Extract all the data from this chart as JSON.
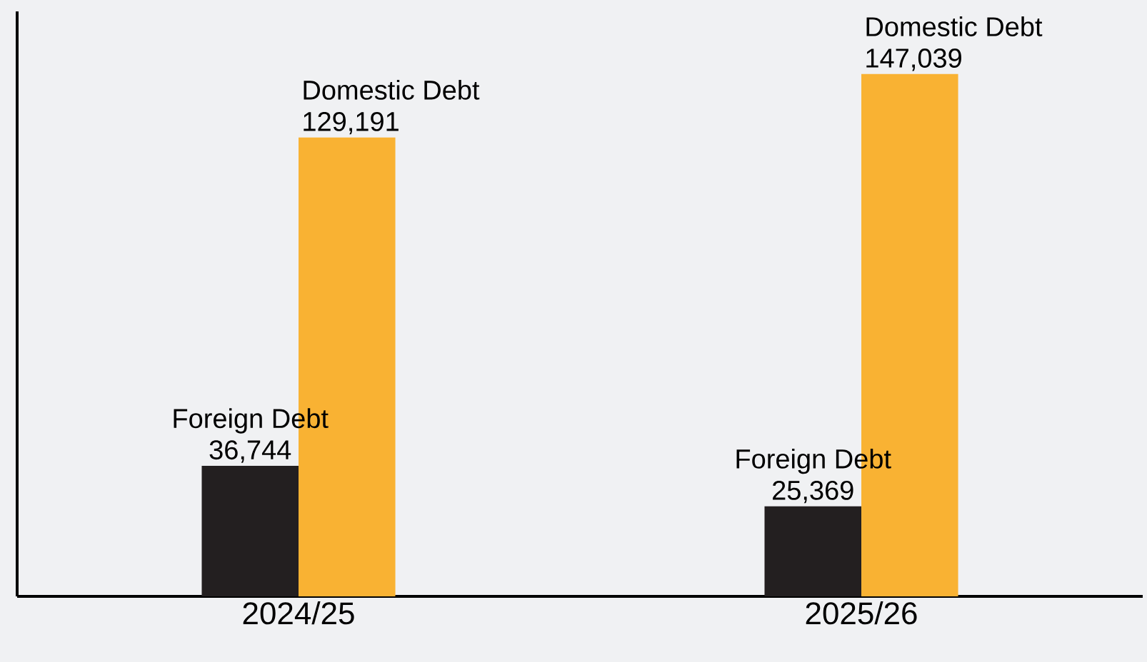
{
  "chart_data": {
    "type": "bar",
    "categories": [
      "2024/25",
      "2025/26"
    ],
    "series": [
      {
        "name": "Foreign Debt",
        "color": "#231f20",
        "values": [
          36744,
          25369
        ],
        "value_labels": [
          "36,744",
          "25,369"
        ]
      },
      {
        "name": "Domestic Debt",
        "color": "#f9b233",
        "values": [
          129191,
          147039
        ],
        "value_labels": [
          "129,191",
          "147,039"
        ]
      }
    ],
    "tick_labels": "x",
    "legend": false
  }
}
